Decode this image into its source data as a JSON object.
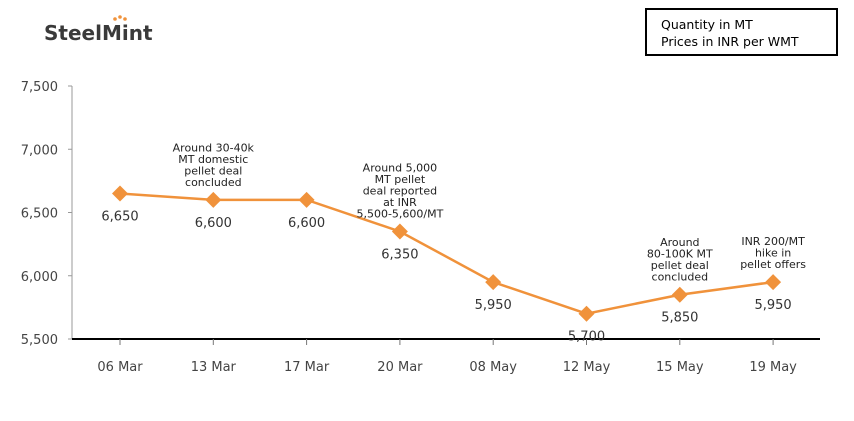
{
  "brand": {
    "name": "SteelMint"
  },
  "notes": [
    "Quantity in MT",
    "Prices in INR per WMT"
  ],
  "colors": {
    "series": "#f0923b",
    "axis": "#000000",
    "text": "#333333",
    "logo": "#3a3a3a"
  },
  "chart_data": {
    "type": "line",
    "categories": [
      "06 Mar",
      "13 Mar",
      "17 Mar",
      "20 Mar",
      "08 May",
      "12 May",
      "15 May",
      "19 May"
    ],
    "series": [
      {
        "values": [
          6650,
          6600,
          6600,
          6350,
          5950,
          5700,
          5850,
          5950
        ]
      }
    ],
    "data_labels": [
      "6,650",
      "6,600",
      "6,600",
      "6,350",
      "5,950",
      "5,700",
      "5,850",
      "5,950"
    ],
    "ylim": [
      5500,
      7500
    ],
    "yticks": [
      5500,
      6000,
      6500,
      7000,
      7500
    ],
    "ytick_labels": [
      "5,500",
      "6,000",
      "6,500",
      "7,000",
      "7,500"
    ],
    "annotations": [
      {
        "category": "13 Mar",
        "lines": [
          "Around 30-40k",
          "MT domestic",
          "pellet deal",
          "concluded"
        ]
      },
      {
        "category": "20 Mar",
        "lines": [
          "Around 5,000",
          "MT pellet",
          "deal reported",
          "at INR",
          "5,500-5,600/MT"
        ]
      },
      {
        "category": "15 May",
        "lines": [
          "Around",
          "80-100K MT",
          "pellet deal",
          "concluded"
        ]
      },
      {
        "category": "19 May",
        "lines": [
          "INR 200/MT",
          "hike in",
          "pellet offers"
        ]
      }
    ],
    "marker": "diamond",
    "grid": false
  }
}
